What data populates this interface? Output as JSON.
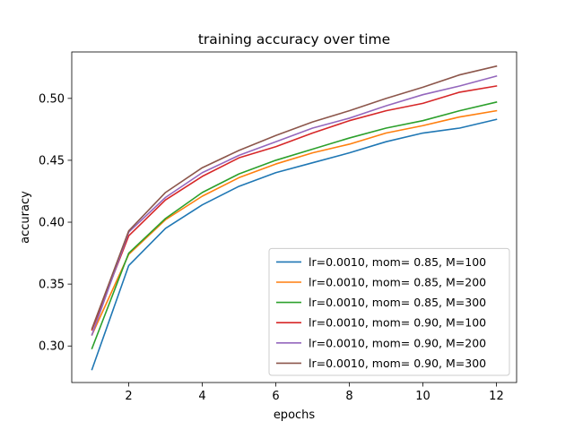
{
  "chart_data": {
    "type": "line",
    "title": "training accuracy over time",
    "xlabel": "epochs",
    "ylabel": "accuracy",
    "xlim": [
      0.45,
      12.55
    ],
    "ylim": [
      0.2705,
      0.5375
    ],
    "xticks": [
      2,
      4,
      6,
      8,
      10,
      12
    ],
    "yticks": [
      0.3,
      0.35,
      0.4,
      0.45,
      0.5
    ],
    "ytick_labels": [
      "0.30",
      "0.35",
      "0.40",
      "0.45",
      "0.50"
    ],
    "grid": false,
    "legend_position": "lower-right",
    "x": [
      1,
      2,
      3,
      4,
      5,
      6,
      7,
      8,
      9,
      10,
      11,
      12
    ],
    "series": [
      {
        "name": "lr=0.0010, mom= 0.85, M=100",
        "color": "#1f77b4",
        "values": [
          0.281,
          0.365,
          0.395,
          0.414,
          0.429,
          0.44,
          0.448,
          0.456,
          0.465,
          0.472,
          0.476,
          0.483
        ]
      },
      {
        "name": "lr=0.0010, mom= 0.85, M=200",
        "color": "#ff7f0e",
        "values": [
          0.309,
          0.374,
          0.402,
          0.421,
          0.436,
          0.447,
          0.456,
          0.463,
          0.472,
          0.478,
          0.485,
          0.49
        ]
      },
      {
        "name": "lr=0.0010, mom= 0.85, M=300",
        "color": "#2ca02c",
        "values": [
          0.298,
          0.375,
          0.403,
          0.424,
          0.439,
          0.45,
          0.459,
          0.468,
          0.476,
          0.482,
          0.49,
          0.497
        ]
      },
      {
        "name": "lr=0.0010, mom= 0.90, M=100",
        "color": "#d62728",
        "values": [
          0.313,
          0.389,
          0.418,
          0.437,
          0.452,
          0.461,
          0.472,
          0.482,
          0.49,
          0.496,
          0.505,
          0.51
        ]
      },
      {
        "name": "lr=0.0010, mom= 0.90, M=200",
        "color": "#9467bd",
        "values": [
          0.309,
          0.392,
          0.42,
          0.44,
          0.454,
          0.465,
          0.476,
          0.484,
          0.494,
          0.503,
          0.51,
          0.518
        ]
      },
      {
        "name": "lr=0.0010, mom= 0.90, M=300",
        "color": "#8c564b",
        "values": [
          0.314,
          0.393,
          0.424,
          0.444,
          0.458,
          0.47,
          0.481,
          0.49,
          0.5,
          0.509,
          0.519,
          0.526
        ]
      }
    ]
  }
}
